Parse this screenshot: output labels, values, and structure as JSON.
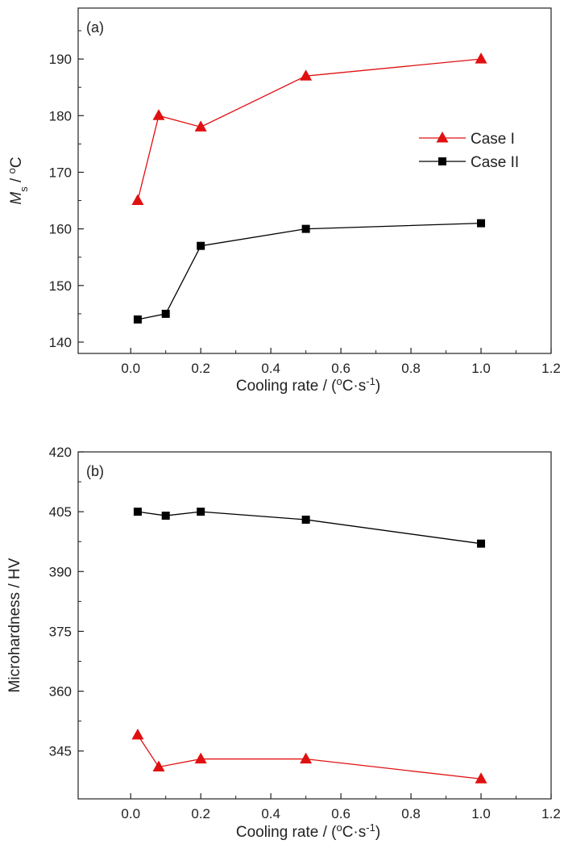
{
  "chart_data": [
    {
      "type": "line",
      "panel_label": "(a)",
      "xlabel": "Cooling rate / (°C·s⁻¹)",
      "ylabel": "Ms / °C",
      "ylabel_parts": {
        "main": "M",
        "sub": "s",
        "unit": " / ",
        "sup": "o",
        "unit_end": "C"
      },
      "xlabel_parts": {
        "main": "Cooling rate / (",
        "sup": "o",
        "mid": "C·s",
        "sup2": "-1",
        "end": ")"
      },
      "xlim": [
        -0.15,
        1.2
      ],
      "ylim": [
        138,
        199
      ],
      "xticks": [
        "0.0",
        "0.2",
        "0.4",
        "0.6",
        "0.8",
        "1.0",
        "1.2"
      ],
      "yticks": [
        "140",
        "150",
        "160",
        "170",
        "180",
        "190"
      ],
      "legend": {
        "position": "right-middle",
        "entries": [
          "Case I",
          "Case II"
        ]
      },
      "series": [
        {
          "name": "Case I",
          "color": "#e01010",
          "marker": "triangle",
          "x": [
            0.02,
            0.08,
            0.2,
            0.5,
            1.0
          ],
          "y": [
            165,
            180,
            178,
            187,
            190
          ]
        },
        {
          "name": "Case II",
          "color": "#000000",
          "marker": "square",
          "x": [
            0.02,
            0.1,
            0.2,
            0.5,
            1.0
          ],
          "y": [
            144,
            145,
            157,
            160,
            161
          ]
        }
      ]
    },
    {
      "type": "line",
      "panel_label": "(b)",
      "xlabel": "Cooling rate / (°C·s⁻¹)",
      "ylabel": "Microhardness / HV",
      "xlabel_parts": {
        "main": "Cooling rate / (",
        "sup": "o",
        "mid": "C·s",
        "sup2": "-1",
        "end": ")"
      },
      "xlim": [
        -0.15,
        1.2
      ],
      "ylim": [
        333,
        420
      ],
      "xticks": [
        "0.0",
        "0.2",
        "0.4",
        "0.6",
        "0.8",
        "1.0",
        "1.2"
      ],
      "yticks": [
        "345",
        "360",
        "375",
        "390",
        "405",
        "420"
      ],
      "series": [
        {
          "name": "Case II",
          "color": "#000000",
          "marker": "square",
          "x": [
            0.02,
            0.1,
            0.2,
            0.5,
            1.0
          ],
          "y": [
            405,
            404,
            405,
            403,
            397
          ]
        },
        {
          "name": "Case I",
          "color": "#e01010",
          "marker": "triangle",
          "x": [
            0.02,
            0.08,
            0.2,
            0.5,
            1.0
          ],
          "y": [
            349,
            341,
            343,
            343,
            338
          ]
        }
      ]
    }
  ]
}
